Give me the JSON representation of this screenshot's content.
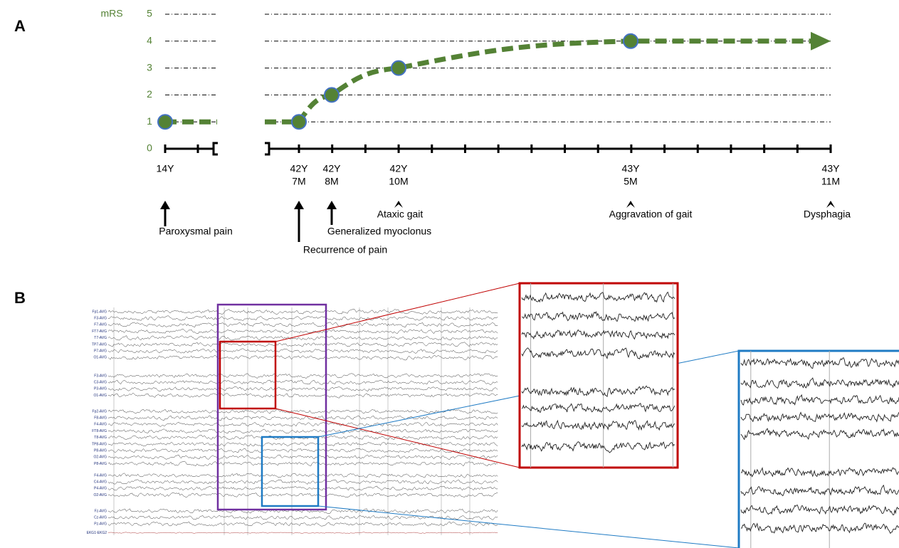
{
  "panels": {
    "a": "A",
    "b": "B"
  },
  "chart_data": {
    "type": "line",
    "y_label": "mRS",
    "ylim": [
      0,
      5
    ],
    "yticks": [
      0,
      1,
      2,
      3,
      4,
      5
    ],
    "grid": true,
    "x": [
      [
        "14Y"
      ],
      [
        "42Y",
        "7M"
      ],
      [
        "42Y",
        "8M"
      ],
      [
        "42Y",
        "10M"
      ],
      [
        "43Y",
        "5M"
      ],
      [
        "43Y",
        "11M"
      ]
    ],
    "series": [
      {
        "color": "#548235",
        "values": [
          1,
          1,
          2,
          3,
          4,
          null
        ]
      }
    ],
    "events": [
      {
        "label": "Paroxysmal pain",
        "at": 0
      },
      {
        "label": "Recurrence of pain",
        "at": 1
      },
      {
        "label": "Generalized myoclonus",
        "at": 2
      },
      {
        "label": "Ataxic gait",
        "at": 3
      },
      {
        "label": "Aggravation of gait",
        "at": 4
      },
      {
        "label": "Dysphagia",
        "at": 5
      }
    ]
  },
  "eeg": {
    "channels": [
      [
        "Fp1-AVG",
        "F3-AVG",
        "F7-AVG",
        "FT7-AVG",
        "T7-AVG",
        "TP7-AVG",
        "P7-AVG",
        "O1-AVG"
      ],
      [
        "F3-AVG",
        "C3-AVG",
        "P3-AVG",
        "O1-AVG"
      ],
      [
        "Fp2-AVG",
        "F8-AVG",
        "F4-AVG",
        "FT8-AVG",
        "T8-AVG",
        "TP8-AVG",
        "P8-AVG",
        "O2-AVG",
        "P8-AVG"
      ],
      [
        "F4-AVG",
        "C4-AVG",
        "P4-AVG",
        "O2-AVG"
      ],
      [
        "Fz-AVG",
        "Cz-AVG",
        "Pz-AVG",
        "EKG1-EKG2"
      ]
    ]
  }
}
